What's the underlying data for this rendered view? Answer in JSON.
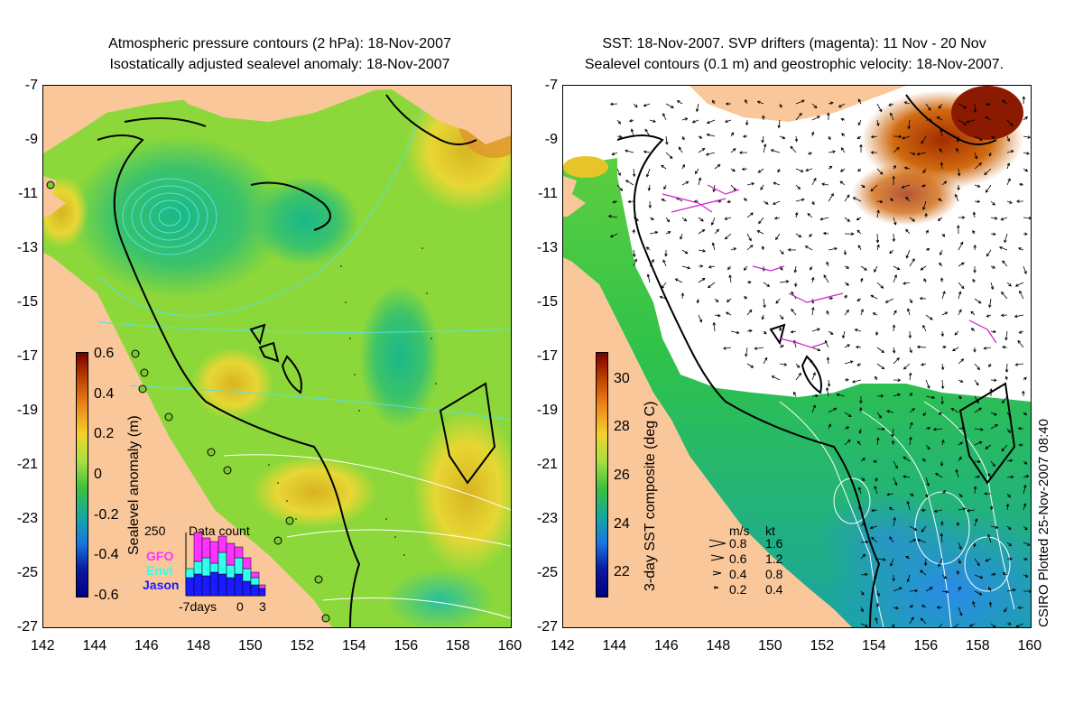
{
  "left_panel": {
    "title_line1": "Atmospheric pressure contours (2 hPa): 18-Nov-2007",
    "title_line2": "Isostatically adjusted sealevel anomaly: 18-Nov-2007",
    "colorbar": {
      "label": "Sealevel anomaly (m)",
      "ticks": [
        "0.6",
        "0.4",
        "0.2",
        "0",
        "-0.2",
        "-0.4",
        "-0.6"
      ],
      "range": [
        -0.6,
        0.6
      ]
    },
    "data_count": {
      "title": "Data count",
      "ymax_label": "250",
      "legend": [
        "GFO",
        "Envi",
        "Jason"
      ],
      "legend_colors": [
        "#ff33ff",
        "#33ffee",
        "#1a1aff"
      ],
      "x_labels": [
        "-7days",
        "0",
        "3"
      ]
    }
  },
  "right_panel": {
    "title_line1": "SST: 18-Nov-2007. SVP drifters (magenta): 11 Nov - 20 Nov",
    "title_line2": "Sealevel contours (0.1 m) and geostrophic velocity: 18-Nov-2007.",
    "colorbar": {
      "label": "3-day SST composite (deg C)",
      "ticks": [
        "30",
        "28",
        "26",
        "24",
        "22"
      ],
      "range": [
        21,
        31
      ]
    },
    "velocity_key": {
      "headers": [
        "m/s",
        "kt"
      ],
      "rows": [
        [
          "0.8",
          "1.6"
        ],
        [
          "0.6",
          "1.2"
        ],
        [
          "0.4",
          "0.8"
        ],
        [
          "0.2",
          "0.4"
        ]
      ]
    }
  },
  "axes": {
    "y_ticks": [
      "-7",
      "-9",
      "-11",
      "-13",
      "-15",
      "-17",
      "-19",
      "-21",
      "-23",
      "-25",
      "-27"
    ],
    "x_ticks": [
      "142",
      "144",
      "146",
      "148",
      "150",
      "152",
      "154",
      "156",
      "158",
      "160"
    ],
    "lon_range": [
      142,
      160
    ],
    "lat_range": [
      -27,
      -7
    ]
  },
  "credit": "CSIRO Plotted 25-Nov-2007 08:40",
  "colors": {
    "land": "#f9c79a",
    "ocean_mid": "#7fd63a",
    "cloud": "#ffffff",
    "drifter": "#cc22cc"
  }
}
